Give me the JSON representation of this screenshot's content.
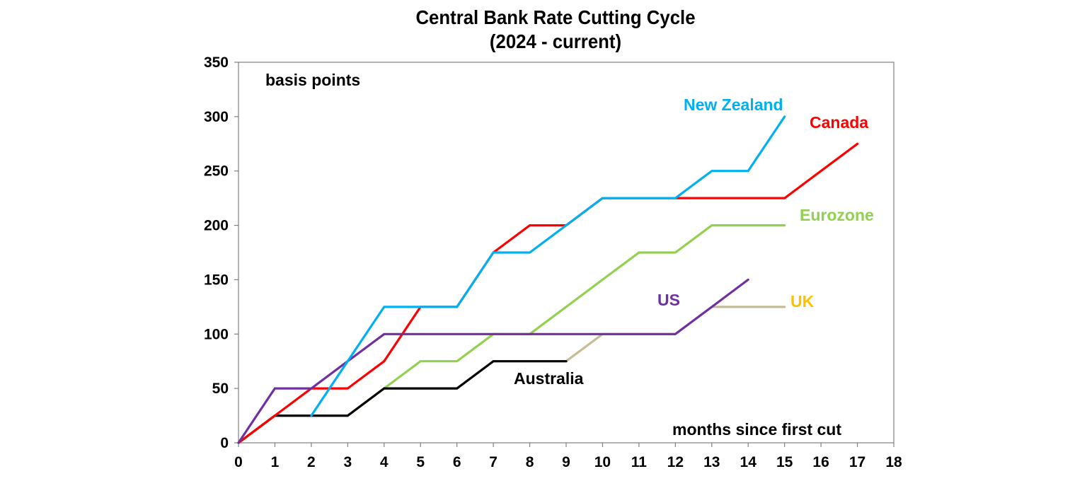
{
  "chart_data": {
    "type": "line",
    "title": "Central Bank Rate Cutting Cycle",
    "subtitle": "(2024 - current)",
    "ylabel": "basis points",
    "xlabel": "months since first cut",
    "xlim": [
      0,
      18
    ],
    "ylim": [
      0,
      350
    ],
    "xticks": [
      0,
      1,
      2,
      3,
      4,
      5,
      6,
      7,
      8,
      9,
      10,
      11,
      12,
      13,
      14,
      15,
      16,
      17,
      18
    ],
    "yticks": [
      0,
      50,
      100,
      150,
      200,
      250,
      300,
      350
    ],
    "grid": false,
    "legend": "inline labels",
    "series": [
      {
        "name": "UK",
        "color": "#c4bd97",
        "label_color": "#ffc000",
        "values": [
          0,
          25,
          25,
          25,
          50,
          50,
          50,
          75,
          75,
          75,
          100,
          100,
          100,
          125,
          125,
          125
        ]
      },
      {
        "name": "Eurozone",
        "color": "#92d050",
        "values": [
          0,
          25,
          25,
          25,
          50,
          75,
          75,
          100,
          100,
          125,
          150,
          175,
          175,
          200,
          200,
          200
        ]
      },
      {
        "name": "Australia",
        "color": "#000000",
        "values": [
          0,
          25,
          25,
          25,
          50,
          50,
          50,
          75,
          75,
          75
        ]
      },
      {
        "name": "Canada",
        "color": "#ff0000",
        "values": [
          0,
          25,
          50,
          50,
          75,
          125,
          125,
          175,
          200,
          200,
          225,
          225,
          225,
          225,
          225,
          225,
          250,
          275
        ]
      },
      {
        "name": "US",
        "color": "#7030a0",
        "values": [
          0,
          50,
          50,
          75,
          100,
          100,
          100,
          100,
          100,
          100,
          100,
          100,
          100,
          125,
          150
        ]
      },
      {
        "name": "New Zealand",
        "color": "#00b0f0",
        "values": [
          null,
          null,
          25,
          75,
          125,
          125,
          125,
          175,
          175,
          200,
          225,
          225,
          225,
          250,
          250,
          300
        ]
      }
    ]
  }
}
